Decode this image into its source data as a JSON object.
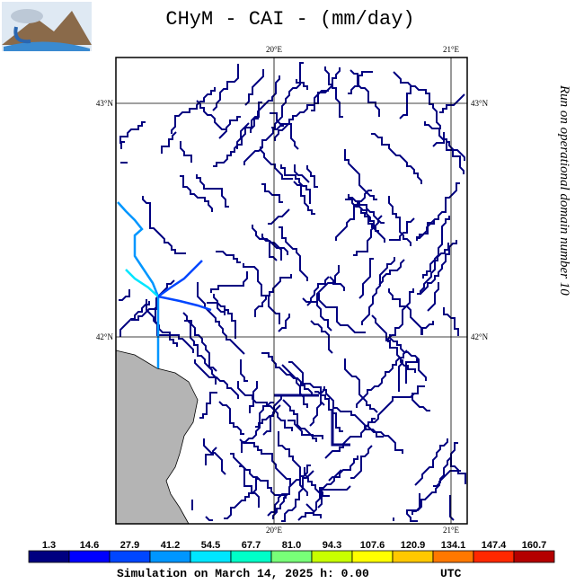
{
  "title": "CHyM - CAI - (mm/day)",
  "longitude_labels": [
    "20°E",
    "21°E"
  ],
  "latitude_labels": [
    "43°N",
    "42°N"
  ],
  "side_note": "Run on operational domain number 10",
  "colorbar": {
    "labels": [
      "1.3",
      "14.6",
      "27.9",
      "41.2",
      "54.5",
      "67.7",
      "81.0",
      "94.3",
      "107.6",
      "120.9",
      "134.1",
      "147.4",
      "160.7"
    ],
    "colors": [
      "#000080",
      "#0000ff",
      "#0046ff",
      "#0096ff",
      "#00e6ff",
      "#00ffc8",
      "#78ff78",
      "#c8ff00",
      "#ffff00",
      "#ffc800",
      "#ff7800",
      "#ff2800",
      "#b40000"
    ]
  },
  "footer": {
    "simulation": "Simulation on March 14, 2025 h: 0.00",
    "timezone": "UTC"
  }
}
